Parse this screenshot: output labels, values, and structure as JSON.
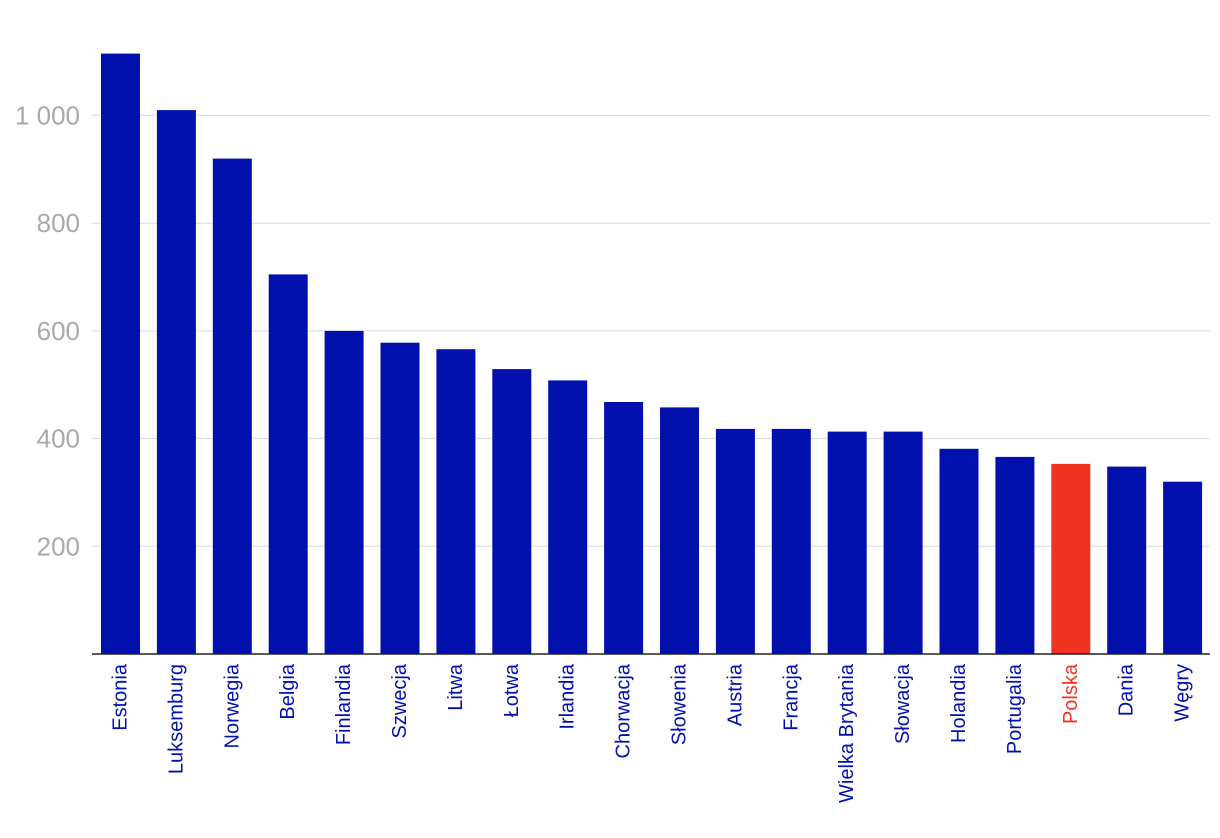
{
  "chart_data": {
    "type": "bar",
    "categories": [
      "Estonia",
      "Luksemburg",
      "Norwegia",
      "Belgia",
      "Finlandia",
      "Szwecja",
      "Litwa",
      "Łotwa",
      "Irlandia",
      "Chorwacja",
      "Słowenia",
      "Austria",
      "Francja",
      "Wielka Brytania",
      "Słowacja",
      "Holandia",
      "Portugalia",
      "Polska",
      "Dania",
      "Węgry"
    ],
    "values": [
      1115,
      1010,
      920,
      705,
      600,
      578,
      566,
      529,
      508,
      468,
      458,
      418,
      418,
      413,
      413,
      381,
      366,
      353,
      348,
      320
    ],
    "highlight": "Polska",
    "yticks": [
      200,
      400,
      600,
      800,
      1000
    ],
    "ytick_labels": [
      "200",
      "400",
      "600",
      "800",
      "1 000"
    ],
    "ylim": [
      0,
      1150
    ],
    "grid": true,
    "title": "",
    "xlabel": "",
    "ylabel": "",
    "colors": {
      "bar": "#0210ad",
      "highlight": "#f13421",
      "grid": "#dcdcdc",
      "tick_text": "#a9a9a9"
    }
  }
}
